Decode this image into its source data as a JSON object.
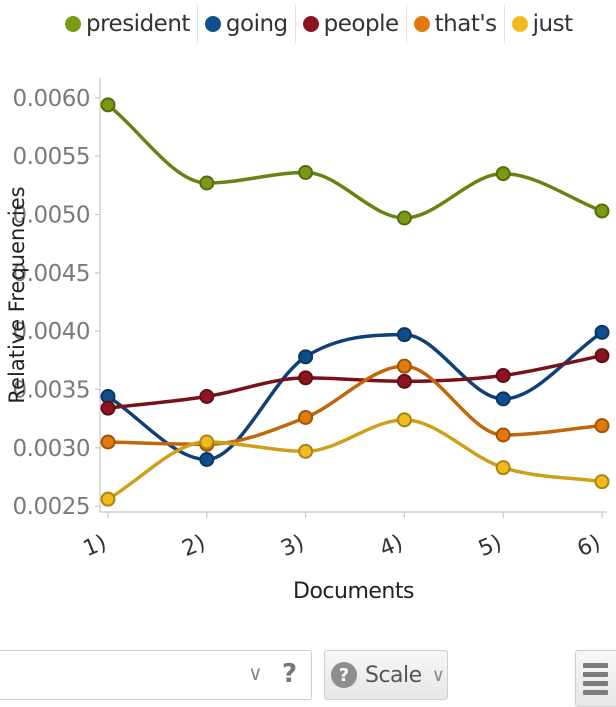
{
  "chart_data": {
    "type": "line",
    "categories": [
      "1)",
      "2)",
      "3)",
      "4)",
      "5)",
      "6)"
    ],
    "series": [
      {
        "name": "president",
        "color": "#7a9a14",
        "values": [
          0.00594,
          0.00527,
          0.00536,
          0.00497,
          0.00535,
          0.00503
        ]
      },
      {
        "name": "going",
        "color": "#0f4d8c",
        "values": [
          0.00344,
          0.0029,
          0.00378,
          0.00397,
          0.00342,
          0.00399
        ]
      },
      {
        "name": "people",
        "color": "#8c1420",
        "values": [
          0.00334,
          0.00344,
          0.0036,
          0.00357,
          0.00362,
          0.00379
        ]
      },
      {
        "name": "that's",
        "color": "#e3780c",
        "values": [
          0.00305,
          0.00303,
          0.00326,
          0.0037,
          0.00311,
          0.00319
        ]
      },
      {
        "name": "just",
        "color": "#f2bb1c",
        "values": [
          0.00256,
          0.00305,
          0.00297,
          0.00324,
          0.00283,
          0.00271
        ]
      }
    ],
    "xlabel": "Documents",
    "ylabel": "Relative Frequencies",
    "ylim": [
      0.00245,
      0.00617
    ],
    "yticks": [
      "0.0025",
      "0.0030",
      "0.0035",
      "0.0040",
      "0.0045",
      "0.0050",
      "0.0055",
      "0.0060"
    ],
    "grid": false,
    "legend": "top"
  },
  "legend": {
    "items": [
      {
        "label": "president",
        "color": "#7a9a14"
      },
      {
        "label": "going",
        "color": "#0f4d8c"
      },
      {
        "label": "people",
        "color": "#8c1420"
      },
      {
        "label": "that's",
        "color": "#e3780c"
      },
      {
        "label": "just",
        "color": "#f2bb1c"
      }
    ]
  },
  "toolbar": {
    "search_value": "",
    "search_chevron_icon": "chevron-down-icon",
    "search_help": "?",
    "scale_help": "?",
    "scale_label": "Scale",
    "scale_chevron_icon": "chevron-down-icon",
    "menu_icon": "menu-icon"
  }
}
